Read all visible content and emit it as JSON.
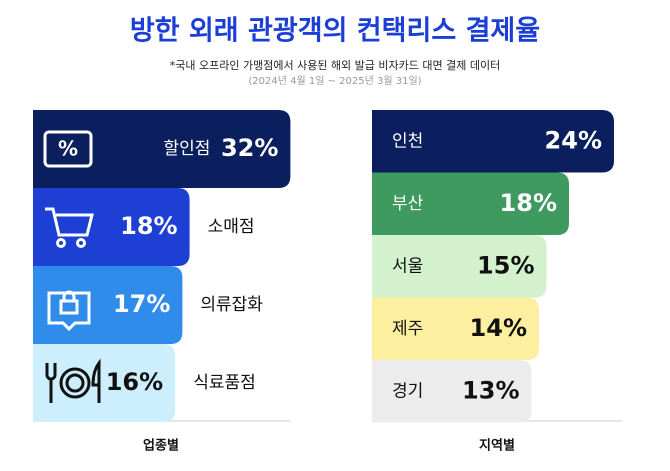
{
  "title": "방한 외래 관광객의 컨택리스 결제율",
  "note": "*국내 오프라인 가맹점에서 사용된 해외 발급 비자카드 대면 결제 데이터",
  "period": "(2024년 4월 1일 ~ 2025년 3월 31일)",
  "chart_data": [
    {
      "type": "bar",
      "xlabel": "업종별",
      "categories": [
        "할인점",
        "소매점",
        "의류잡화",
        "식료품점"
      ],
      "values": [
        32,
        18,
        17,
        16
      ],
      "value_labels": [
        "32%",
        "18%",
        "17%",
        "16%"
      ],
      "colors": [
        "#0b1f5e",
        "#1d3fd4",
        "#2f8ceb",
        "#cdeefc"
      ]
    },
    {
      "type": "bar",
      "xlabel": "지역별",
      "categories": [
        "인천",
        "부산",
        "서울",
        "제주",
        "경기"
      ],
      "values": [
        24,
        18,
        15,
        14,
        13
      ],
      "value_labels": [
        "24%",
        "18%",
        "15%",
        "14%",
        "13%"
      ],
      "colors": [
        "#0b1f5e",
        "#3f9a60",
        "#d3f1cc",
        "#fcefa0",
        "#ececec"
      ]
    }
  ]
}
